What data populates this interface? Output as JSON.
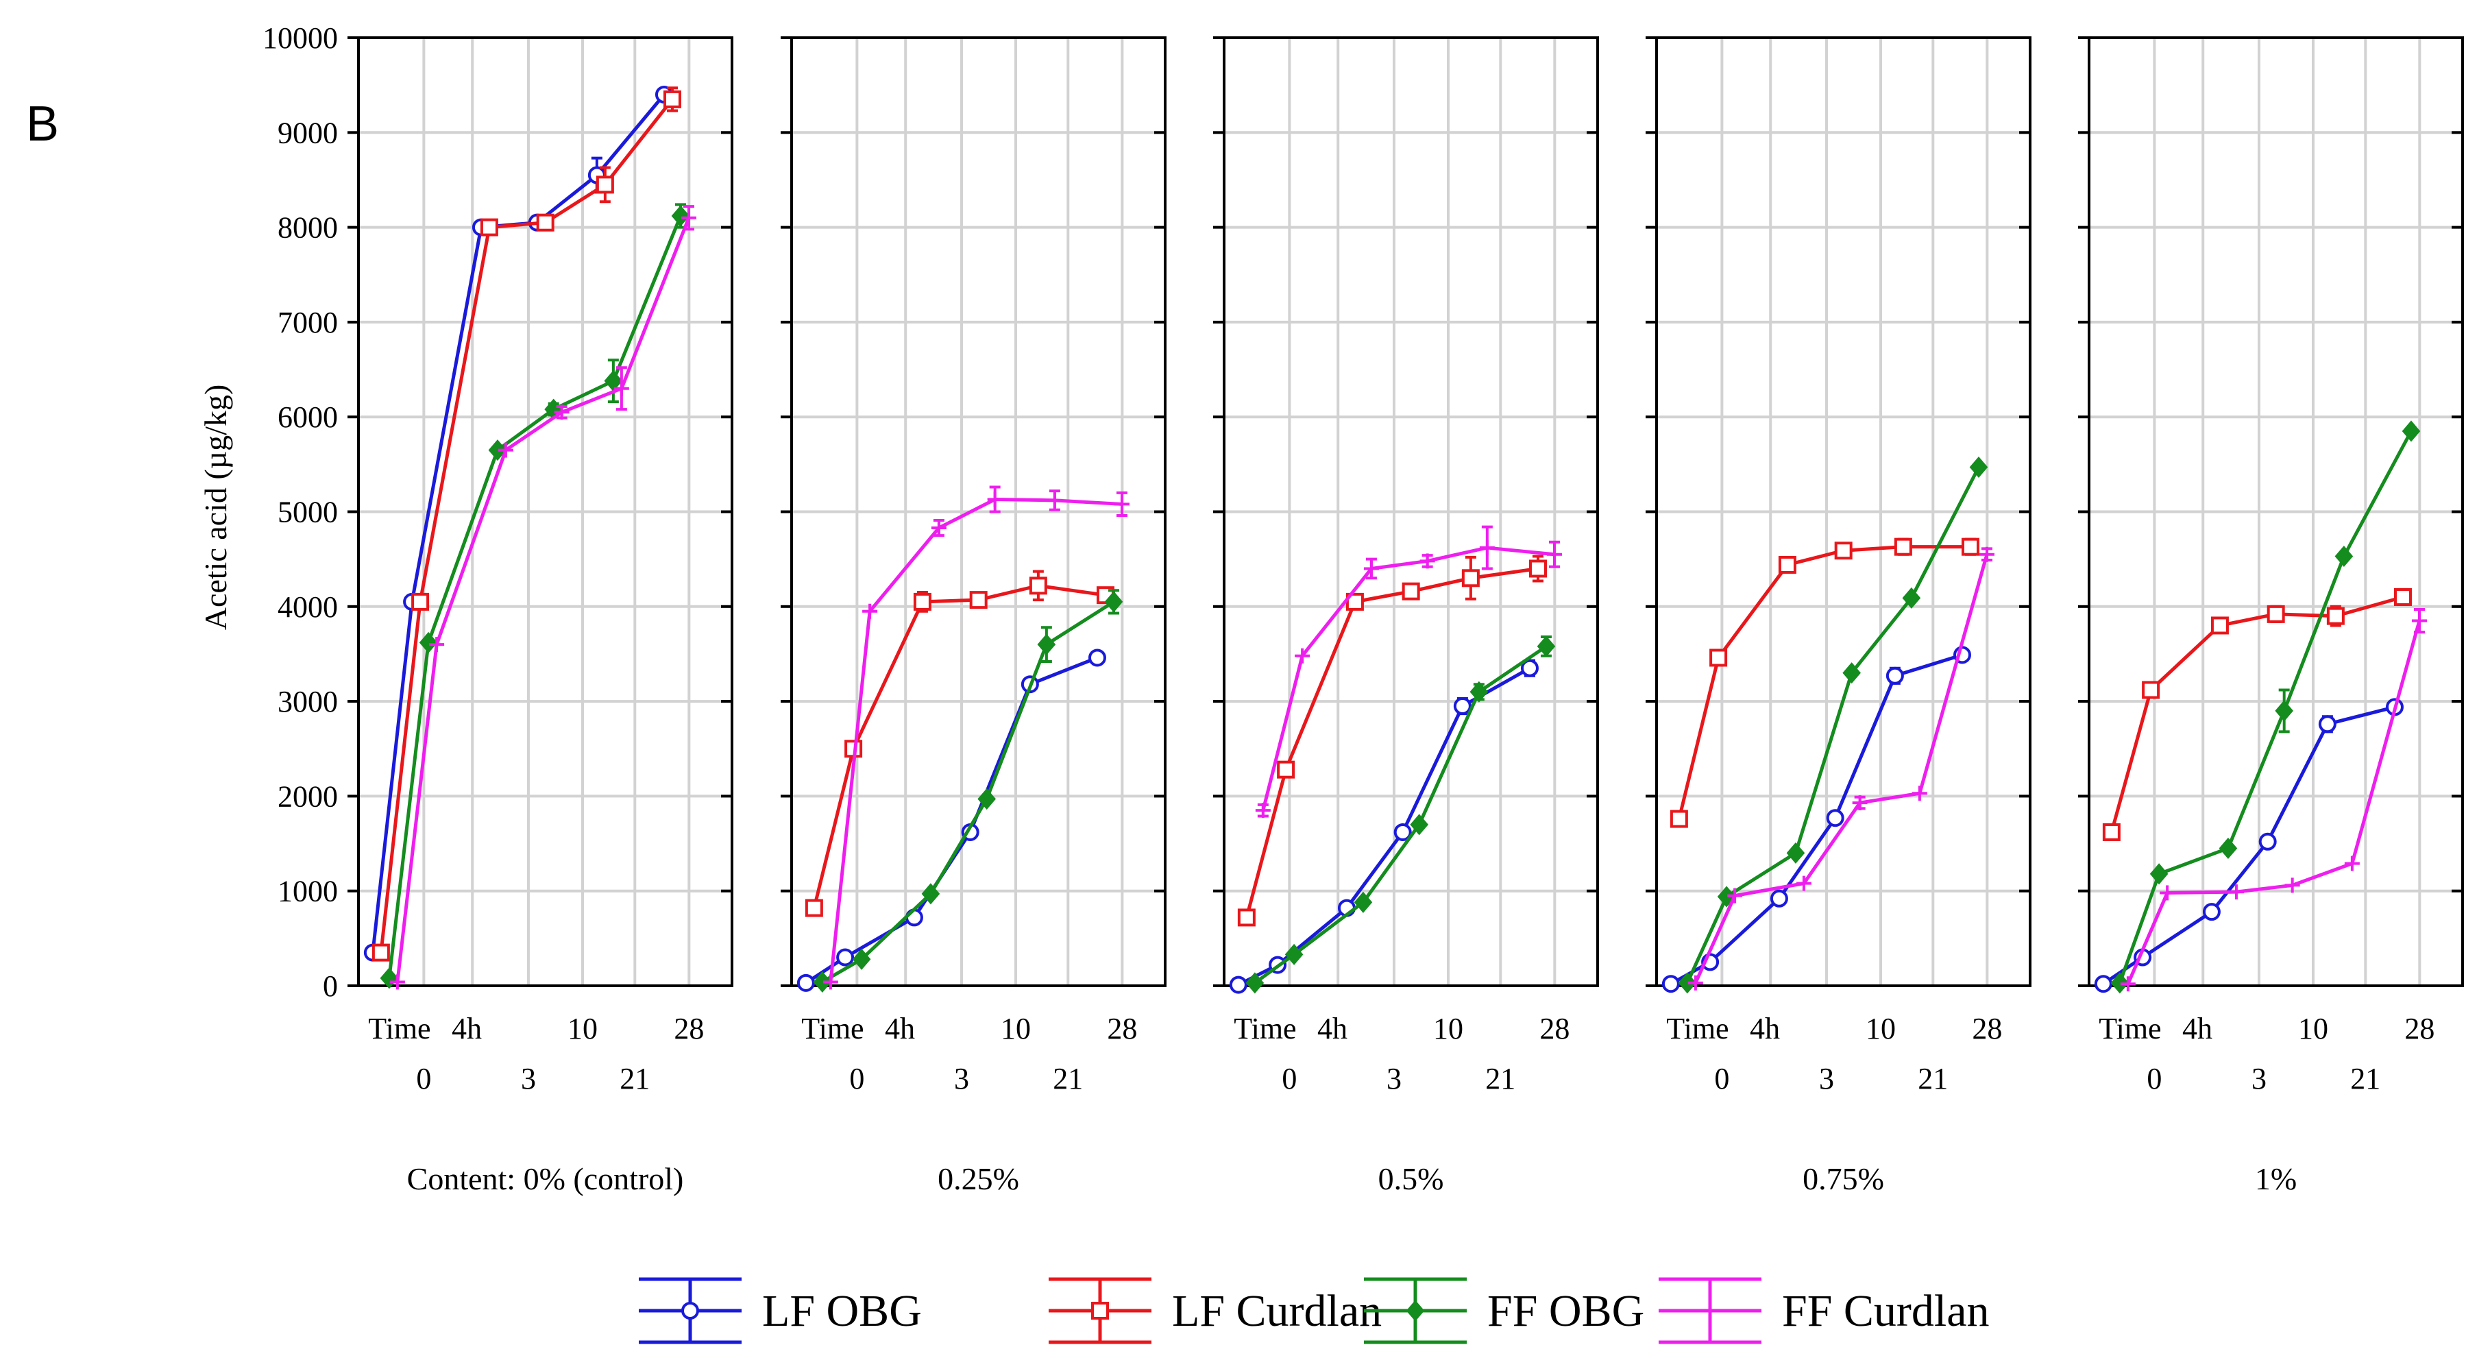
{
  "panel_label": "B",
  "chart_data": {
    "type": "line",
    "title": "",
    "ylabel": "Acetic acid (µg/kg)",
    "ylim": [
      0,
      10000
    ],
    "yticks": [
      0,
      1000,
      2000,
      3000,
      4000,
      5000,
      6000,
      7000,
      8000,
      9000,
      10000
    ],
    "x_row1": [
      "Time",
      "4h",
      "10",
      "28"
    ],
    "x_row2": [
      "0",
      "3",
      "21"
    ],
    "x_categories": [
      "0",
      "4h",
      "3",
      "10",
      "21",
      "28"
    ],
    "grid": true,
    "series_styles": [
      {
        "name": "LF OBG",
        "color": "#1a1adb",
        "marker": "circle"
      },
      {
        "name": "LF Curdlan",
        "color": "#e8171b",
        "marker": "square"
      },
      {
        "name": "FF OBG",
        "color": "#148c1e",
        "marker": "diamond"
      },
      {
        "name": "FF Curdlan",
        "color": "#ee1fee",
        "marker": "cross"
      }
    ],
    "panels": [
      {
        "label": "Content: 0% (control)",
        "series": [
          {
            "name": "LF OBG",
            "values": [
              350,
              4050,
              8000,
              8050,
              8550,
              9400
            ],
            "errors": [
              0,
              0,
              0,
              60,
              180,
              0
            ]
          },
          {
            "name": "LF Curdlan",
            "values": [
              350,
              4050,
              8000,
              8050,
              8450,
              9350
            ],
            "errors": [
              0,
              0,
              0,
              60,
              180,
              120
            ]
          },
          {
            "name": "FF OBG",
            "values": [
              80,
              3620,
              5650,
              6080,
              6380,
              8120
            ],
            "errors": [
              0,
              0,
              0,
              60,
              220,
              120
            ]
          },
          {
            "name": "FF Curdlan",
            "values": [
              40,
              3600,
              5650,
              6050,
              6300,
              8100
            ],
            "errors": [
              0,
              0,
              0,
              60,
              220,
              120
            ]
          }
        ]
      },
      {
        "label": "0.25%",
        "series": [
          {
            "name": "LF OBG",
            "values": [
              30,
              300,
              720,
              1620,
              3180,
              3460
            ],
            "errors": [
              0,
              0,
              0,
              0,
              0,
              0
            ]
          },
          {
            "name": "LF Curdlan",
            "values": [
              820,
              2500,
              4050,
              4070,
              4220,
              4120
            ],
            "errors": [
              0,
              60,
              100,
              60,
              150,
              60
            ]
          },
          {
            "name": "FF OBG",
            "values": [
              40,
              280,
              970,
              1970,
              3600,
              4050
            ],
            "errors": [
              0,
              0,
              0,
              0,
              180,
              120
            ]
          },
          {
            "name": "FF Curdlan",
            "values": [
              40,
              3950,
              4830,
              5130,
              5120,
              5080
            ],
            "errors": [
              0,
              0,
              80,
              130,
              100,
              120
            ]
          }
        ]
      },
      {
        "label": "0.5%",
        "series": [
          {
            "name": "LF OBG",
            "values": [
              10,
              220,
              820,
              1620,
              2950,
              3350
            ],
            "errors": [
              0,
              0,
              0,
              0,
              80,
              80
            ]
          },
          {
            "name": "LF Curdlan",
            "values": [
              720,
              2280,
              4050,
              4160,
              4300,
              4400
            ],
            "errors": [
              0,
              0,
              0,
              60,
              220,
              130
            ]
          },
          {
            "name": "FF OBG",
            "values": [
              30,
              330,
              880,
              1700,
              3100,
              3580
            ],
            "errors": [
              0,
              0,
              0,
              0,
              80,
              100
            ]
          },
          {
            "name": "FF Curdlan",
            "values": [
              1850,
              3480,
              4400,
              4480,
              4620,
              4550
            ],
            "errors": [
              60,
              0,
              100,
              60,
              220,
              130
            ]
          }
        ]
      },
      {
        "label": "0.75%",
        "series": [
          {
            "name": "LF OBG",
            "values": [
              20,
              250,
              920,
              1770,
              3270,
              3490
            ],
            "errors": [
              0,
              0,
              0,
              0,
              80,
              0
            ]
          },
          {
            "name": "LF Curdlan",
            "values": [
              1760,
              3460,
              4440,
              4590,
              4630,
              4630
            ],
            "errors": [
              0,
              0,
              0,
              0,
              80,
              80
            ]
          },
          {
            "name": "FF OBG",
            "values": [
              30,
              940,
              1400,
              3300,
              4090,
              5470
            ],
            "errors": [
              0,
              0,
              0,
              0,
              0,
              0
            ]
          },
          {
            "name": "FF Curdlan",
            "values": [
              30,
              950,
              1080,
              1930,
              2030,
              4550
            ],
            "errors": [
              0,
              0,
              0,
              60,
              0,
              60
            ]
          }
        ]
      },
      {
        "label": "1%",
        "series": [
          {
            "name": "LF OBG",
            "values": [
              20,
              300,
              780,
              1520,
              2760,
              2940
            ],
            "errors": [
              0,
              0,
              0,
              0,
              80,
              0
            ]
          },
          {
            "name": "LF Curdlan",
            "values": [
              1620,
              3120,
              3800,
              3920,
              3900,
              4100
            ],
            "errors": [
              0,
              0,
              0,
              80,
              100,
              80
            ]
          },
          {
            "name": "FF OBG",
            "values": [
              30,
              1180,
              1450,
              2900,
              4530,
              5850
            ],
            "errors": [
              0,
              0,
              0,
              220,
              0,
              0
            ]
          },
          {
            "name": "FF Curdlan",
            "values": [
              20,
              980,
              990,
              1060,
              1290,
              3850
            ],
            "errors": [
              0,
              0,
              0,
              0,
              0,
              120
            ]
          }
        ]
      }
    ]
  }
}
